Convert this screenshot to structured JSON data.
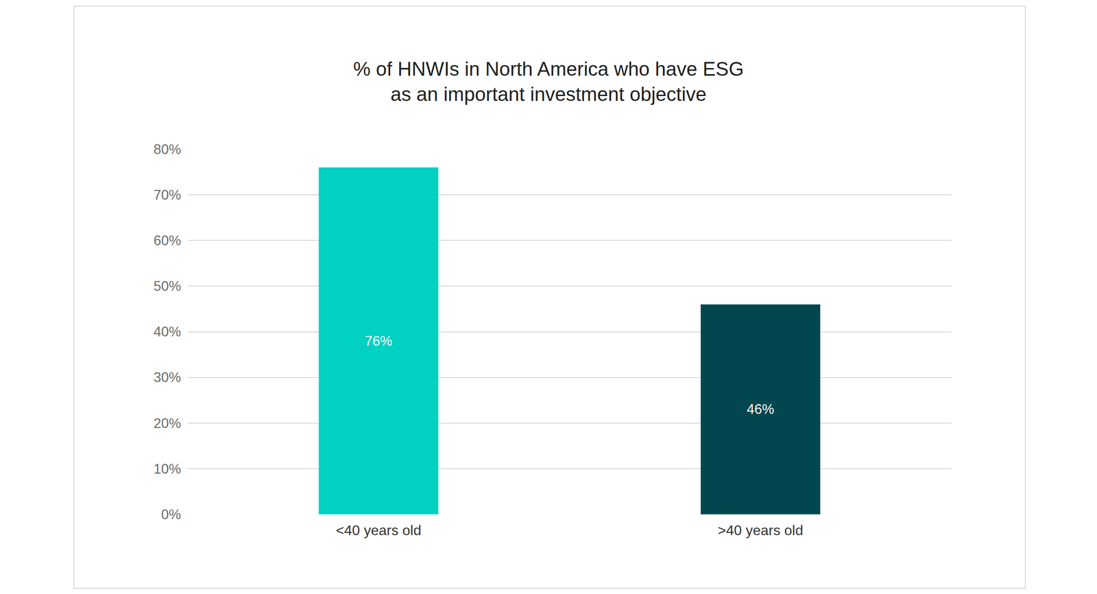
{
  "chart_data": {
    "type": "bar",
    "title": "% of HNWIs in North America who have ESG as an important investment objective",
    "categories": [
      "<40 years old",
      ">40 years old"
    ],
    "values": [
      76,
      46
    ],
    "value_labels": [
      "76%",
      "46%"
    ],
    "colors": [
      "#00d1c1",
      "#02474f"
    ],
    "ylim": [
      0,
      80
    ],
    "yticks": [
      {
        "value": 0,
        "label": "0%"
      },
      {
        "value": 10,
        "label": "10%"
      },
      {
        "value": 20,
        "label": "20%"
      },
      {
        "value": 30,
        "label": "30%"
      },
      {
        "value": 40,
        "label": "40%"
      },
      {
        "value": 50,
        "label": "50%"
      },
      {
        "value": 60,
        "label": "60%"
      },
      {
        "value": 70,
        "label": "70%"
      },
      {
        "value": 80,
        "label": "80%"
      }
    ],
    "grid": true,
    "data_labels": true
  }
}
